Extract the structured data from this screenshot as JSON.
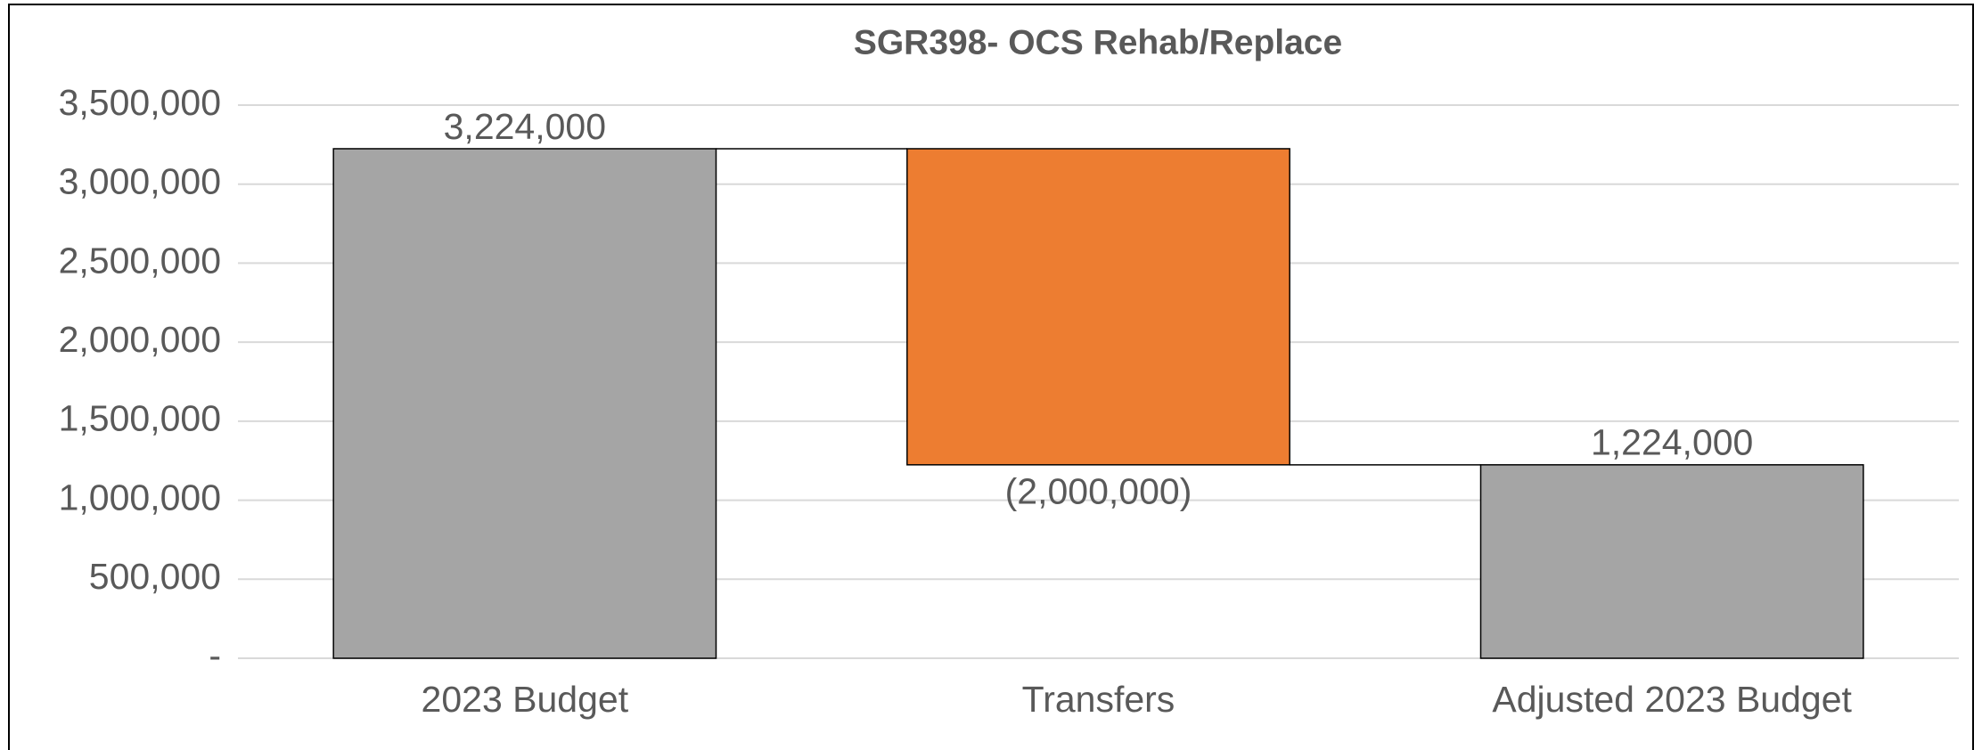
{
  "chart_data": {
    "type": "waterfall",
    "title": "SGR398- OCS Rehab/Replace",
    "categories": [
      "2023 Budget",
      "Transfers",
      "Adjusted 2023 Budget"
    ],
    "values": [
      3224000,
      -2000000,
      1224000
    ],
    "value_labels": [
      "3,224,000",
      "(2,000,000)",
      "1,224,000"
    ],
    "measure": [
      "total",
      "relative",
      "total"
    ],
    "colors": [
      "#a5a5a5",
      "#ed7d31",
      "#a5a5a5"
    ],
    "ylim": [
      0,
      3500000
    ],
    "yticks": [
      {
        "value": 0,
        "label": "-"
      },
      {
        "value": 500000,
        "label": "500,000"
      },
      {
        "value": 1000000,
        "label": "1,000,000"
      },
      {
        "value": 1500000,
        "label": "1,500,000"
      },
      {
        "value": 2000000,
        "label": "2,000,000"
      },
      {
        "value": 2500000,
        "label": "2,500,000"
      },
      {
        "value": 3000000,
        "label": "3,000,000"
      },
      {
        "value": 3500000,
        "label": "3,500,000"
      }
    ],
    "grid": true
  }
}
